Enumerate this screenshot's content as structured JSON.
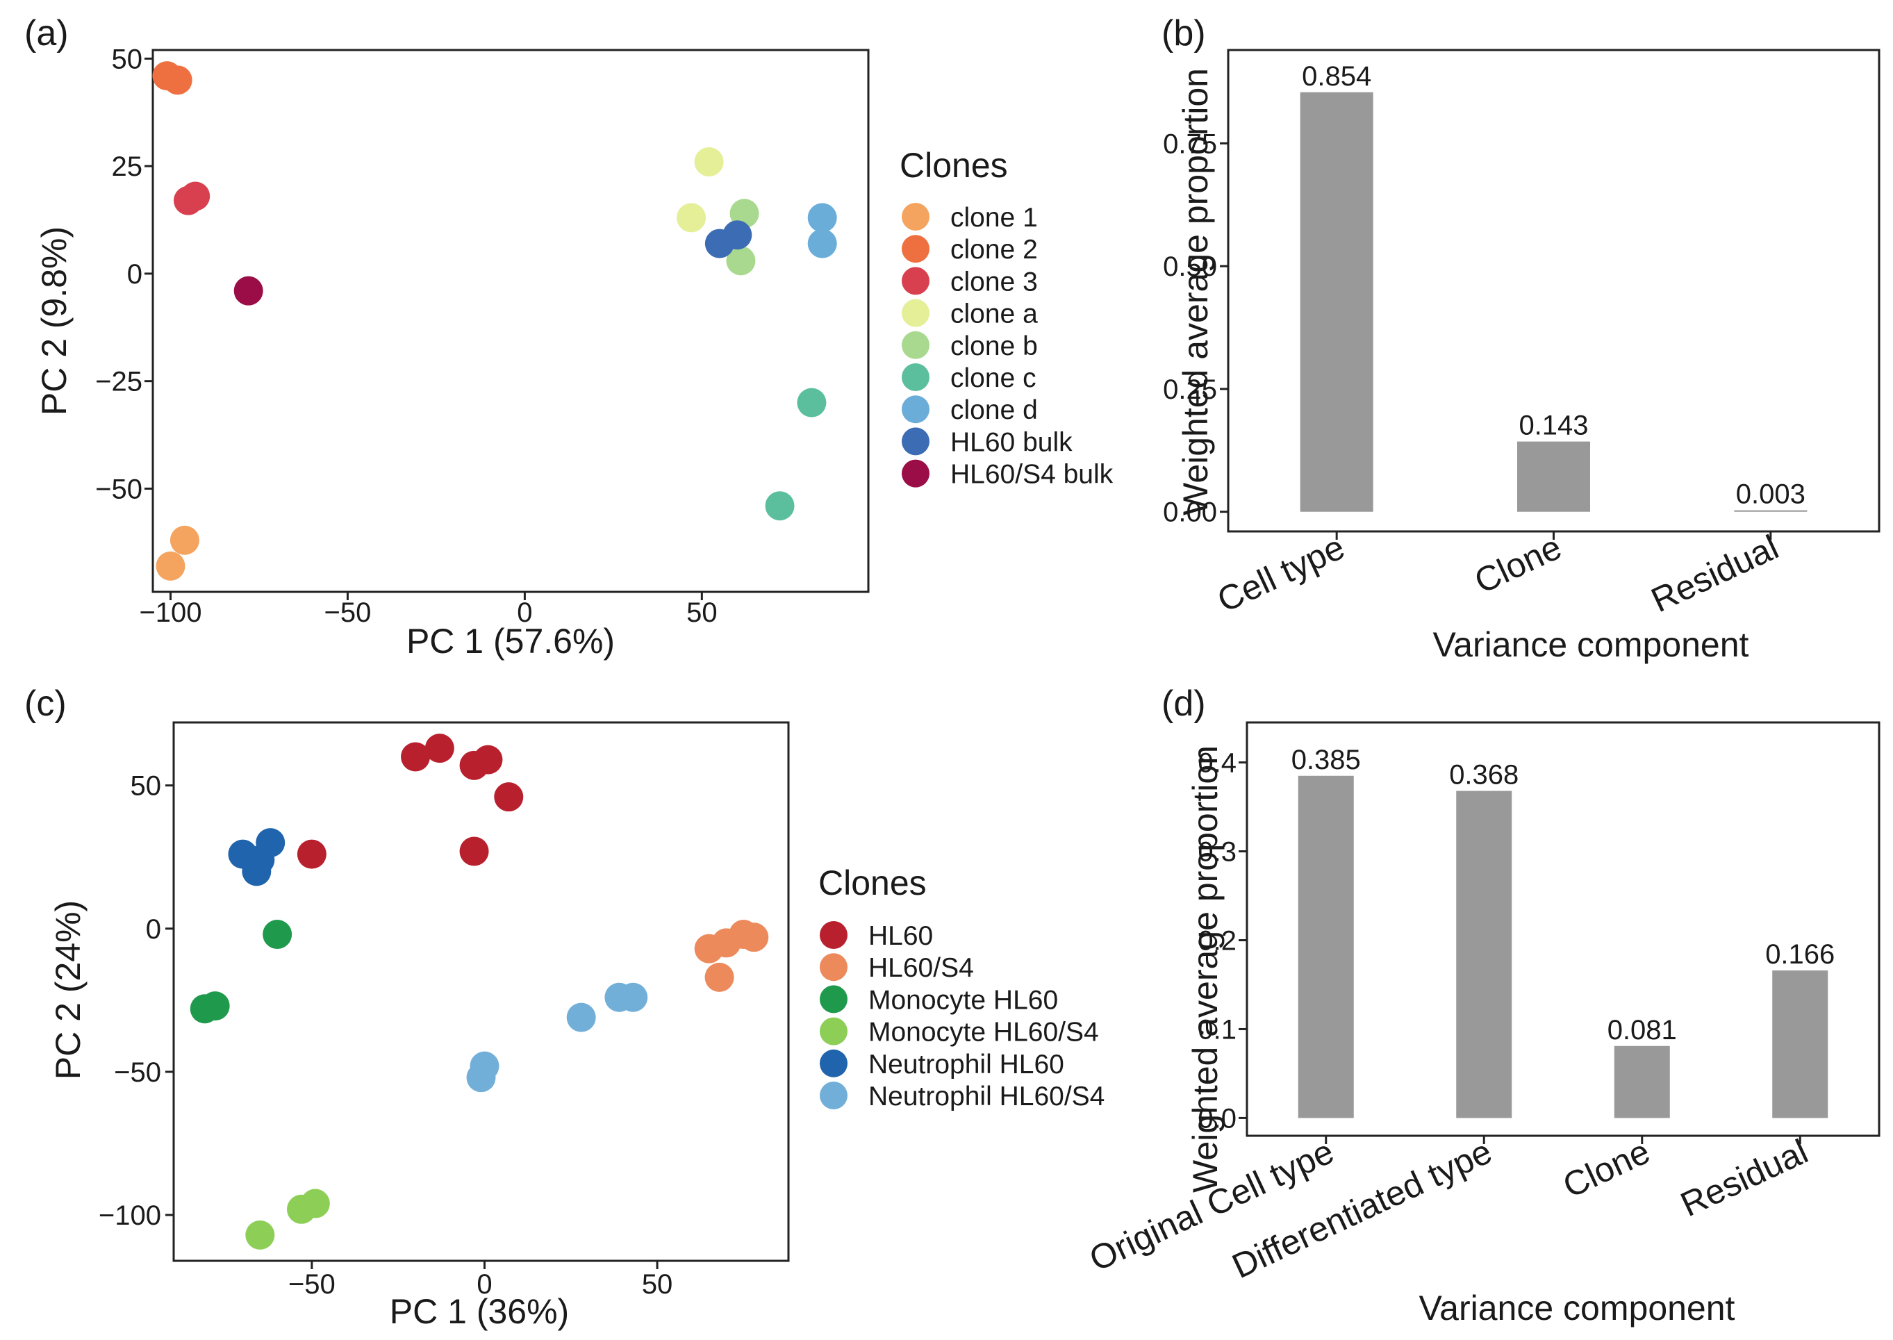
{
  "chart_data": [
    {
      "panel": "(a)",
      "type": "scatter",
      "xlabel": "PC 1 (57.6%)",
      "ylabel": "PC 2 (9.8%)",
      "xlim": [
        -105,
        97
      ],
      "ylim": [
        -74,
        52
      ],
      "xticks": [
        -100,
        -50,
        0,
        50
      ],
      "xtick_labels": [
        "−100",
        "−50",
        "0",
        "50"
      ],
      "yticks": [
        50,
        25,
        0,
        -25,
        -50
      ],
      "ytick_labels": [
        "50",
        "25",
        "0",
        "−25",
        "−50"
      ],
      "legend_title": "Clones",
      "series": [
        {
          "name": "clone 1",
          "color": "#f5a45f",
          "points": [
            [
              -96,
              -62
            ],
            [
              -100,
              -68
            ]
          ]
        },
        {
          "name": "clone 2",
          "color": "#ee7040",
          "points": [
            [
              -101,
              46
            ],
            [
              -98,
              45
            ]
          ]
        },
        {
          "name": "clone 3",
          "color": "#d8404f",
          "points": [
            [
              -93,
              18
            ],
            [
              -95,
              17
            ]
          ]
        },
        {
          "name": "clone a",
          "color": "#e5ef97",
          "points": [
            [
              52,
              26
            ],
            [
              47,
              13
            ]
          ]
        },
        {
          "name": "clone b",
          "color": "#a9d98f",
          "points": [
            [
              62,
              14
            ],
            [
              61,
              3
            ]
          ]
        },
        {
          "name": "clone c",
          "color": "#5bbf9e",
          "points": [
            [
              81,
              -30
            ],
            [
              72,
              -54
            ]
          ]
        },
        {
          "name": "clone d",
          "color": "#6badd9",
          "points": [
            [
              84,
              13
            ],
            [
              84,
              7
            ]
          ]
        },
        {
          "name": "HL60 bulk",
          "color": "#3c6cb4",
          "points": [
            [
              55,
              7
            ],
            [
              60,
              9
            ]
          ]
        },
        {
          "name": "HL60/S4 bulk",
          "color": "#9a0d46",
          "points": [
            [
              -78,
              -4
            ]
          ]
        }
      ]
    },
    {
      "panel": "(b)",
      "type": "bar",
      "categories": [
        "Cell type",
        "Clone",
        "Residual"
      ],
      "values": [
        0.854,
        0.143,
        0.003
      ],
      "value_labels": [
        "0.854",
        "0.143",
        "0.003"
      ],
      "xlabel": "Variance component",
      "ylabel": "Weighted average proportion",
      "ylim": [
        -0.04,
        0.94
      ],
      "yticks": [
        0,
        0.25,
        0.5,
        0.75
      ],
      "ytick_labels": [
        "0.00",
        "0.25",
        "0.50",
        "0.75"
      ],
      "bar_color": "#999999"
    },
    {
      "panel": "(c)",
      "type": "scatter",
      "xlabel": "PC 1 (36%)",
      "ylabel": "PC 2 (24%)",
      "xlim": [
        -90,
        88
      ],
      "ylim": [
        -116,
        72
      ],
      "xticks": [
        -50,
        0,
        50
      ],
      "xtick_labels": [
        "−50",
        "0",
        "50"
      ],
      "yticks": [
        50,
        0,
        -50,
        -100
      ],
      "ytick_labels": [
        "50",
        "0",
        "−50",
        "−100"
      ],
      "legend_title": "Clones",
      "series": [
        {
          "name": "HL60",
          "color": "#b8202e",
          "points": [
            [
              -20,
              60
            ],
            [
              -13,
              63
            ],
            [
              -3,
              57
            ],
            [
              1,
              59
            ],
            [
              7,
              46
            ],
            [
              -3,
              27
            ],
            [
              -50,
              26
            ]
          ]
        },
        {
          "name": "HL60/S4",
          "color": "#ec8a5c",
          "points": [
            [
              65,
              -7
            ],
            [
              70,
              -5
            ],
            [
              75,
              -2
            ],
            [
              78,
              -3
            ],
            [
              68,
              -17
            ]
          ]
        },
        {
          "name": "Monocyte HL60",
          "color": "#1f9a4c",
          "points": [
            [
              -60,
              -2
            ],
            [
              -81,
              -28
            ],
            [
              -78,
              -27
            ]
          ]
        },
        {
          "name": "Monocyte HL60/S4",
          "color": "#8dce57",
          "points": [
            [
              -65,
              -107
            ],
            [
              -53,
              -98
            ],
            [
              -49,
              -96
            ]
          ]
        },
        {
          "name": "Neutrophil HL60",
          "color": "#1f64ac",
          "points": [
            [
              -70,
              26
            ],
            [
              -62,
              30
            ],
            [
              -66,
              20
            ],
            [
              -65,
              24
            ]
          ]
        },
        {
          "name": "Neutrophil HL60/S4",
          "color": "#72afd8",
          "points": [
            [
              28,
              -31
            ],
            [
              39,
              -24
            ],
            [
              43,
              -24
            ],
            [
              0,
              -48
            ],
            [
              -1,
              -52
            ]
          ]
        }
      ]
    },
    {
      "panel": "(d)",
      "type": "bar",
      "categories": [
        "Original Cell type",
        "Differentiated type",
        "Clone",
        "Residual"
      ],
      "values": [
        0.385,
        0.368,
        0.081,
        0.166
      ],
      "value_labels": [
        "0.385",
        "0.368",
        "0.081",
        "0.166"
      ],
      "xlabel": "Variance component",
      "ylabel": "Weighted average proportion",
      "ylim": [
        -0.02,
        0.445
      ],
      "yticks": [
        0,
        0.1,
        0.2,
        0.3,
        0.4
      ],
      "ytick_labels": [
        "0.0",
        "0.1",
        "0.2",
        "0.3",
        "0.4"
      ],
      "bar_color": "#999999"
    }
  ]
}
